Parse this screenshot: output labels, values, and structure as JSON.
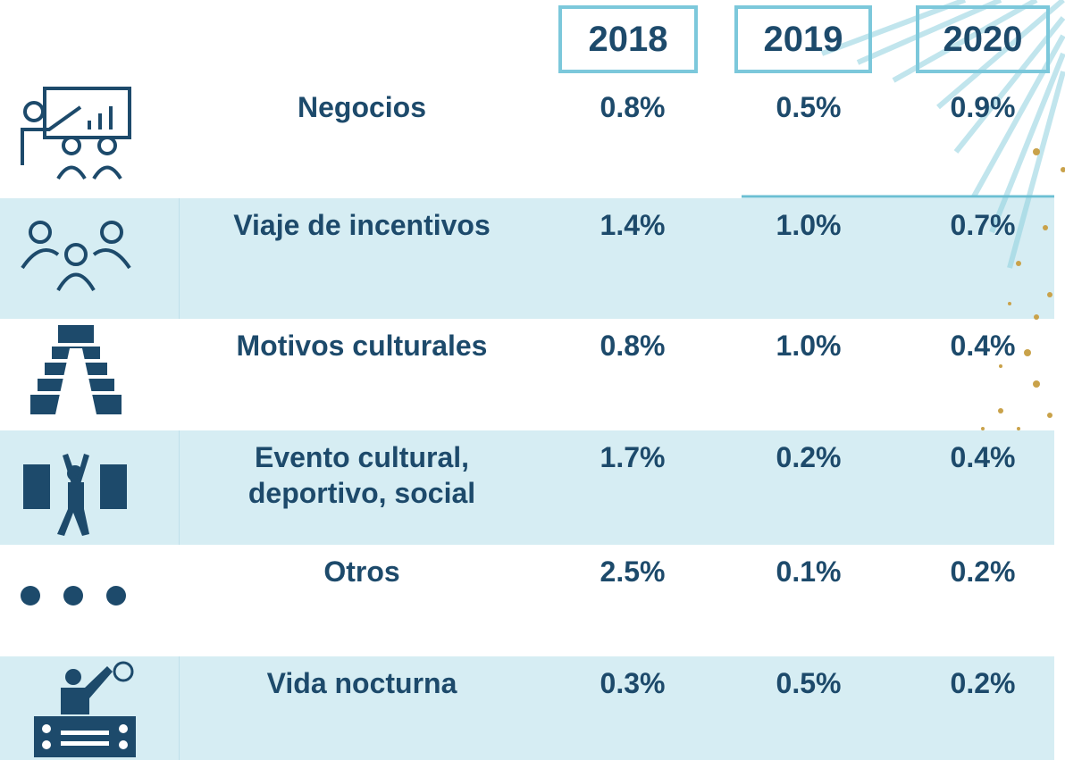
{
  "table": {
    "header": [
      "2018",
      "2019",
      "2020"
    ],
    "rows": [
      {
        "label": "Negocios",
        "values": [
          "0.8%",
          "0.5%",
          "0.9%"
        ]
      },
      {
        "label": "Viaje de incentivos",
        "values": [
          "1.4%",
          "1.0%",
          "0.7%"
        ]
      },
      {
        "label": "Motivos culturales",
        "values": [
          "0.8%",
          "1.0%",
          "0.4%"
        ]
      },
      {
        "label": "Evento cultural, deportivo, social",
        "values": [
          "1.7%",
          "0.2%",
          "0.4%"
        ]
      },
      {
        "label": "Otros",
        "values": [
          "2.5%",
          "0.1%",
          "0.2%"
        ]
      },
      {
        "label": "Vida nocturna",
        "values": [
          "0.3%",
          "0.5%",
          "0.2%"
        ]
      }
    ]
  }
}
